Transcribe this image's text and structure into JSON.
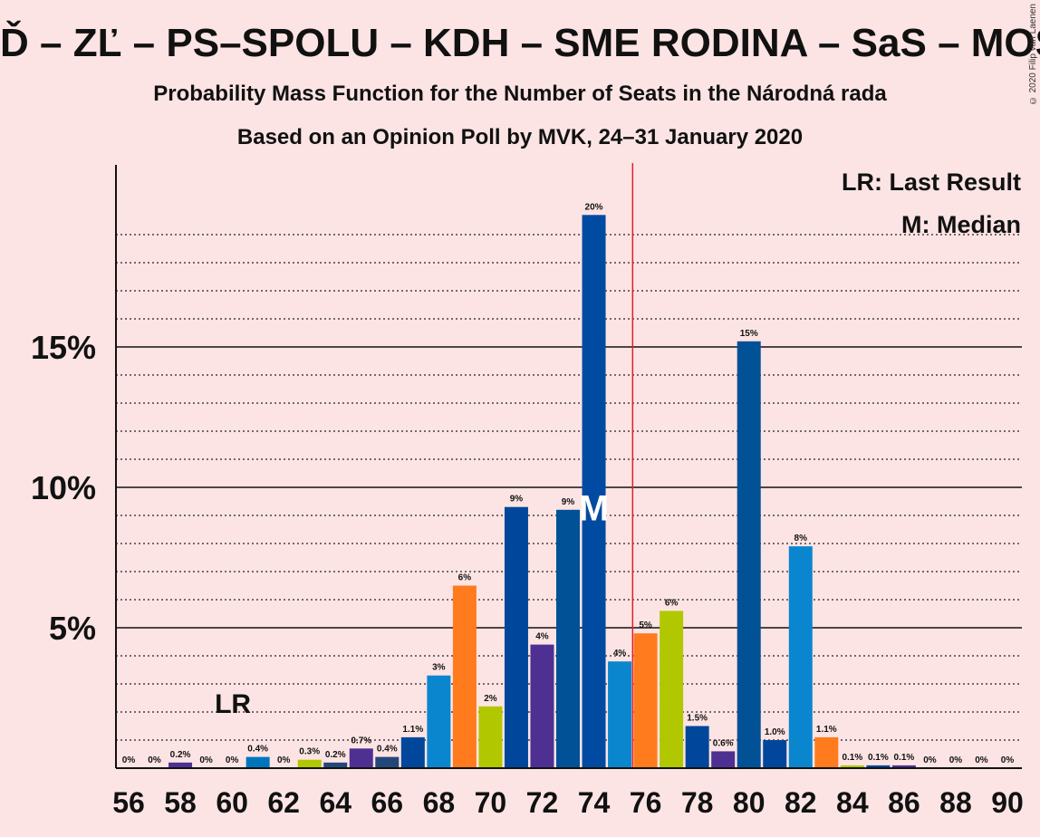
{
  "title": "Ď – ZĽ – PS–SPOLU – KDH – SME RODINA – SaS – MOST",
  "subtitle1": "Probability Mass Function for the Number of Seats in the Národná rada",
  "subtitle2": "Based on an Opinion Poll by MVK, 24–31 January 2020",
  "copyright": "© 2020 Filip van Laenen",
  "legend": {
    "last_result": "LR: Last Result",
    "median": "M: Median"
  },
  "markers": {
    "last_result_label": "LR",
    "last_result_seat": 60,
    "median_label": "M",
    "median_seat": 74,
    "majority_line_seat": 75.5
  },
  "colors": {
    "background": "#fde4e4",
    "majority_line": "#e0202a",
    "text": "#111111"
  },
  "chart_data": {
    "type": "bar",
    "x": [
      56,
      57,
      58,
      59,
      60,
      61,
      62,
      63,
      64,
      65,
      66,
      67,
      68,
      69,
      70,
      71,
      72,
      73,
      74,
      75,
      76,
      77,
      78,
      79,
      80,
      81,
      82,
      83,
      84,
      85,
      86,
      87,
      88,
      89,
      90
    ],
    "values": [
      0,
      0,
      0.2,
      0,
      0,
      0.4,
      0,
      0.3,
      0.2,
      0.7,
      0.4,
      1.1,
      3.3,
      6.5,
      2.2,
      9.3,
      4.4,
      9.2,
      19.7,
      3.8,
      4.8,
      5.6,
      1.5,
      0.6,
      15.2,
      1.0,
      7.9,
      1.1,
      0.1,
      0.1,
      0.1,
      0,
      0,
      0,
      0
    ],
    "labels": [
      "0%",
      "0%",
      "0.2%",
      "0%",
      "0%",
      "0.4%",
      "0%",
      "0.3%",
      "0.2%",
      "0.7%",
      "0.4%",
      "1.1%",
      "3%",
      "6%",
      "2%",
      "9%",
      "4%",
      "9%",
      "20%",
      "4%",
      "5%",
      "6%",
      "1.5%",
      "0.6%",
      "15%",
      "1.0%",
      "8%",
      "1.1%",
      "0.1%",
      "0.1%",
      "0.1%",
      "0%",
      "0%",
      "0%",
      "0%"
    ],
    "colors": [
      "#0075be",
      "#0075be",
      "#4e3093",
      "#0075be",
      "#0075be",
      "#0075be",
      "#0075be",
      "#b1c800",
      "#24477a",
      "#4e3093",
      "#24477a",
      "#00479b",
      "#0a86cf",
      "#ff7b1d",
      "#b1c800",
      "#00479b",
      "#4e3093",
      "#005196",
      "#004aa1",
      "#0a86cf",
      "#ff7b1d",
      "#b1c800",
      "#00479b",
      "#4e3093",
      "#005196",
      "#00479b",
      "#0a86cf",
      "#ff7b1d",
      "#b1c800",
      "#00479b",
      "#4e3093",
      "#0075be",
      "#0075be",
      "#0075be",
      "#0075be"
    ],
    "x_ticks": [
      56,
      58,
      60,
      62,
      64,
      66,
      68,
      70,
      72,
      74,
      76,
      78,
      80,
      82,
      84,
      86,
      88,
      90
    ],
    "y_ticks": [
      5,
      10,
      15
    ],
    "y_tick_labels": [
      "5%",
      "10%",
      "15%"
    ],
    "ylim": [
      0,
      21.5
    ],
    "xlabel": "",
    "ylabel": "",
    "grid": true
  }
}
